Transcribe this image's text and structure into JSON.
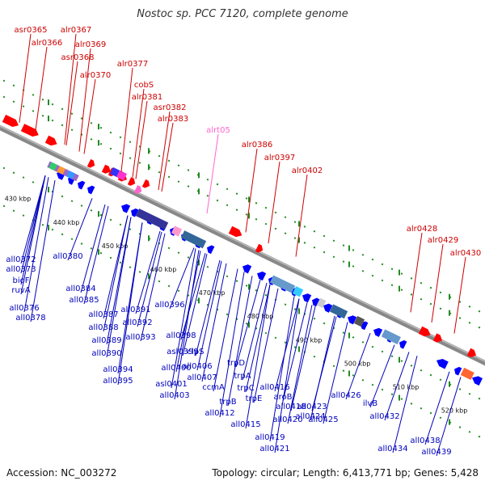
{
  "title": "Nostoc sp. PCC 7120, complete genome",
  "footer": {
    "accession": "Accession: NC_003272",
    "stats": "Topology: circular; Length: 6,413,771 bp; Genes: 5,428"
  },
  "colors": {
    "forward": "#ff0000",
    "reverse": "#0000ff",
    "rna": "#ff66cc",
    "backbone": "#888888",
    "dots": "#228b22",
    "forward_label": "#cc0000",
    "reverse_label": "#0000bb",
    "rna_label": "#ff66cc"
  },
  "kbp_ticks": [
    "430 kbp",
    "440 kbp",
    "450 kbp",
    "460 kbp",
    "470 kbp",
    "480 kbp",
    "490 kbp",
    "500 kbp",
    "510 kbp",
    "520 kbp"
  ],
  "forward_labels": [
    "asr0365",
    "alr0366",
    "alr0367",
    "alr0369",
    "asr0368",
    "alr0370",
    "alr0377",
    "cobS",
    "alr0381",
    "asr0382",
    "alr0383",
    "alrt05",
    "alr0386",
    "alr0397",
    "alr0402",
    "alr0428",
    "alr0429",
    "alr0430"
  ],
  "rna_labels": [
    "alrt05"
  ],
  "reverse_labels": [
    "all0372",
    "all0373",
    "bioF",
    "ruvA",
    "all0376",
    "all0378",
    "all0380",
    "all0384",
    "all0385",
    "all0387",
    "all0388",
    "all0389",
    "all0390",
    "all0391",
    "all0392",
    "all0393",
    "all0394",
    "all0395",
    "all0396",
    "all0398",
    "asl0399",
    "clpS",
    "all0400",
    "all0406",
    "trpD",
    "all0407",
    "trpA",
    "asl0401",
    "all0403",
    "ccmA",
    "trpB",
    "trpC",
    "trpE",
    "all0412",
    "all0415",
    "all0416",
    "aroB",
    "all0418",
    "all0420",
    "all0419",
    "all0421",
    "all0423",
    "all0424",
    "all0425",
    "all0426",
    "ilvB",
    "all0432",
    "all0434",
    "all0438",
    "all0439"
  ]
}
